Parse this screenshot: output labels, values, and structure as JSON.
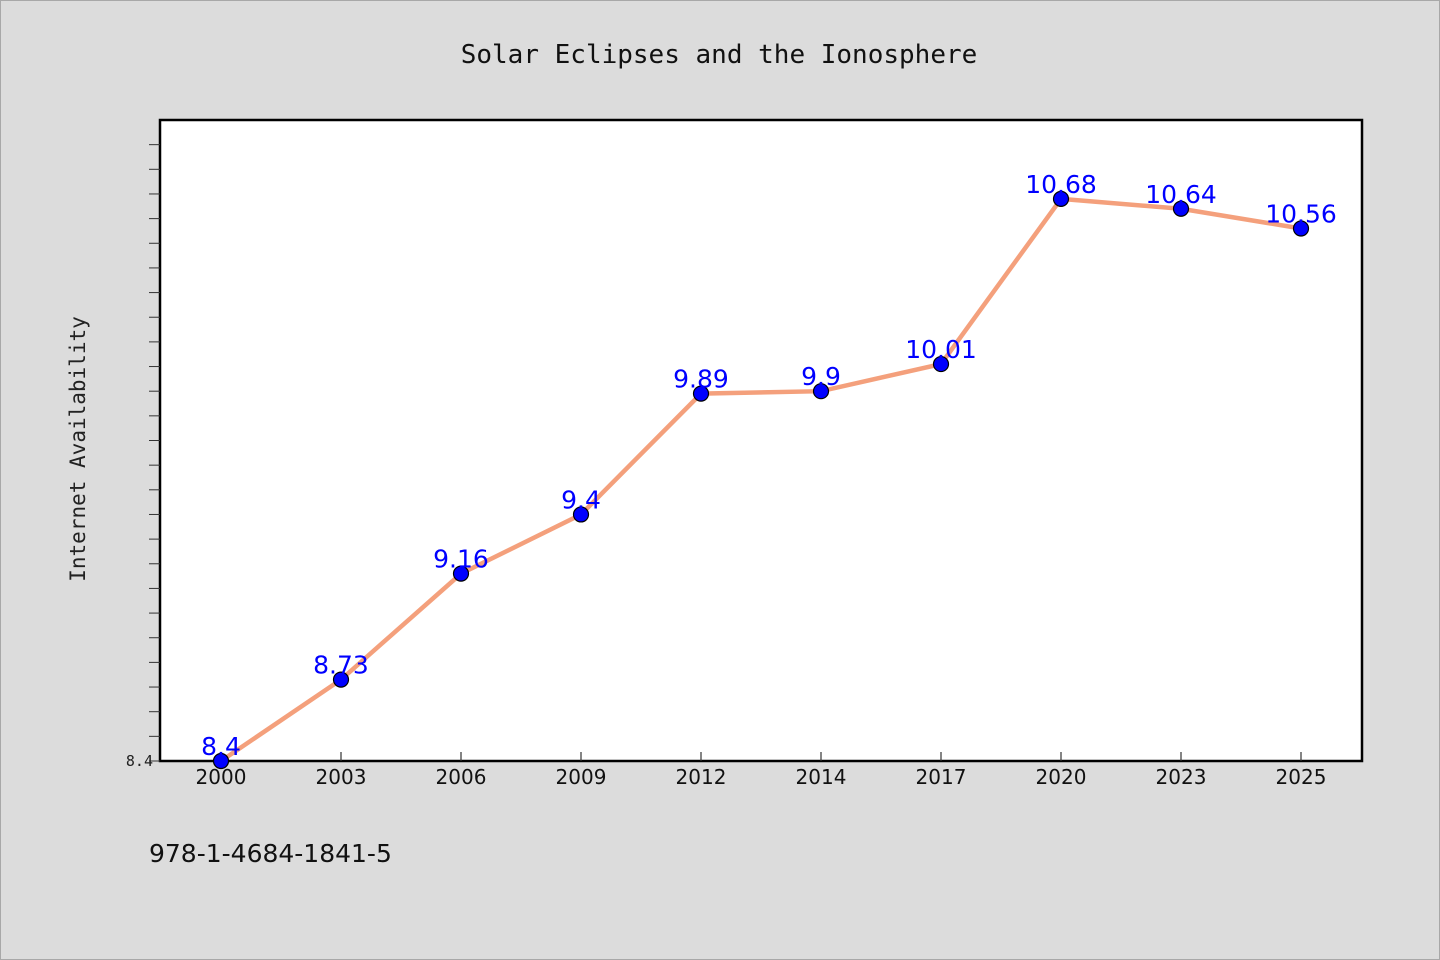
{
  "chart_data": {
    "type": "line",
    "title": "Solar Eclipses and the Ionosphere",
    "xlabel": "",
    "ylabel": "Internet Availability",
    "categories": [
      "2000",
      "2003",
      "2006",
      "2009",
      "2012",
      "2014",
      "2017",
      "2020",
      "2023",
      "2025"
    ],
    "series": [
      {
        "values": [
          8.4,
          8.73,
          9.16,
          9.4,
          9.89,
          9.9,
          10.01,
          10.68,
          10.64,
          10.56
        ],
        "data_labels": [
          "8.4",
          "8.73",
          "9.16",
          "9.4",
          "9.89",
          "9.9",
          "10.01",
          "10.68",
          "10.64",
          "10.56"
        ]
      }
    ],
    "ylim": [
      8.4,
      11.0
    ],
    "y_tick_labels": [
      {
        "value": 8.4,
        "label": "8.4"
      }
    ],
    "y_minor_step": 0.1,
    "grid": false,
    "legend": "none",
    "line_color": "#f4a07c",
    "marker_color": "#0000ff",
    "label_color": "#0000ff"
  },
  "footer": {
    "isbn": "978-1-4684-1841-5"
  }
}
